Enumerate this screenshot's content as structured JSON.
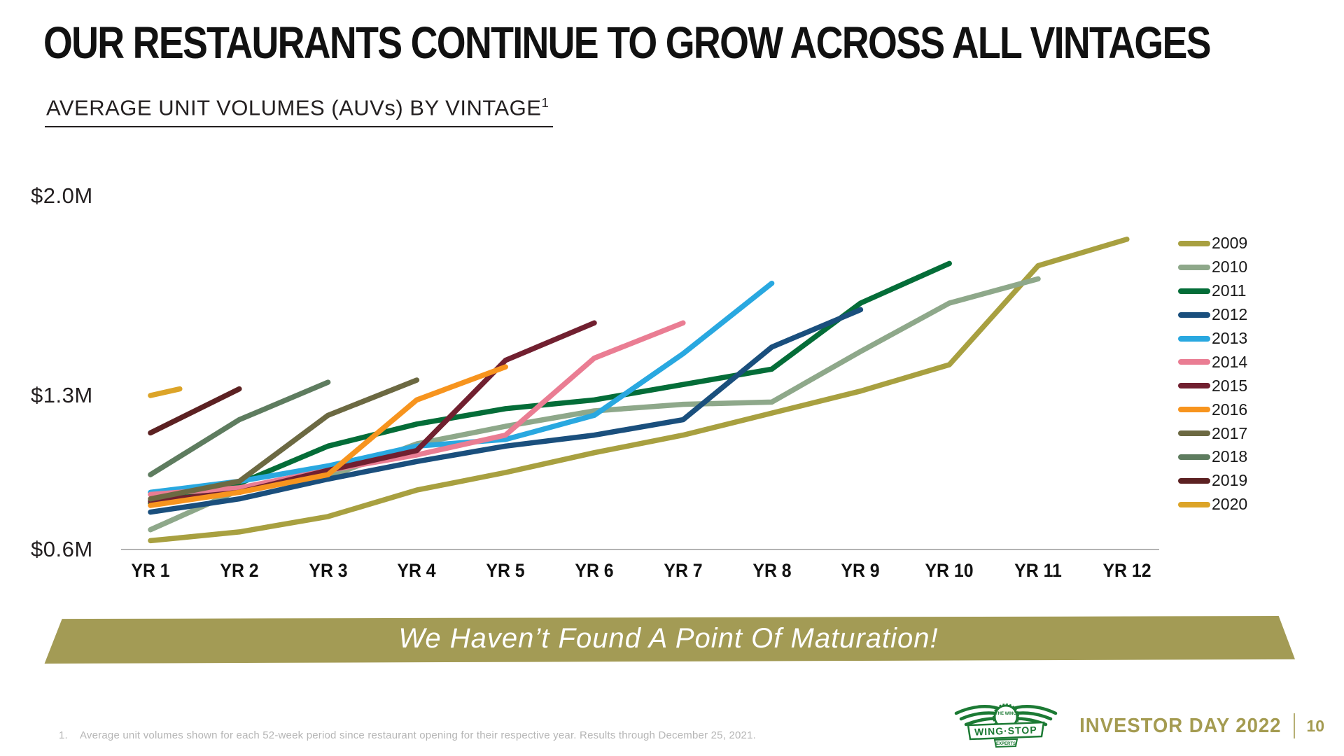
{
  "slide": {
    "title": "OUR RESTAURANTS CONTINUE TO GROW ACROSS ALL VINTAGES",
    "subtitle": {
      "text": "AVERAGE UNIT VOLUMES (AUVs) BY VINTAGE",
      "superscript": "1"
    },
    "banner": "We Haven’t Found A Point Of Maturation!",
    "footnote": {
      "number": "1.",
      "text": "Average unit volumes shown for each 52-week period since restaurant opening for their respective year. Results through December 25, 2021."
    },
    "footer": {
      "logo_brand": "WING·STOP",
      "logo_top": "THE WING",
      "logo_bottom": "EXPERTS",
      "event": "INVESTOR DAY 2022",
      "page": "10"
    }
  },
  "chart_data": {
    "type": "line",
    "title": "AVERAGE UNIT VOLUMES (AUVs) BY VINTAGE",
    "unit": "millions of dollars (AUV)",
    "categories": [
      "YR 1",
      "YR 2",
      "YR 3",
      "YR 4",
      "YR 5",
      "YR 6",
      "YR 7",
      "YR 8",
      "YR 9",
      "YR 10",
      "YR 11",
      "YR 12"
    ],
    "y_ticks": [
      {
        "label": "$2.0M",
        "value": 2.0
      },
      {
        "label": "$1.3M",
        "value": 1.3
      },
      {
        "label": "$0.6M",
        "value": 0.6
      }
    ],
    "ylim": [
      0.6,
      2.05
    ],
    "grid": false,
    "legend_position": "right",
    "series": [
      {
        "name": "2009",
        "color": "#a8a040",
        "values": [
          0.64,
          0.68,
          0.75,
          0.87,
          0.95,
          1.04,
          1.12,
          1.22,
          1.32,
          1.44,
          1.89,
          2.01
        ]
      },
      {
        "name": "2010",
        "color": "#8ea88a",
        "values": [
          0.69,
          0.87,
          0.93,
          1.08,
          1.16,
          1.23,
          1.26,
          1.27,
          1.5,
          1.72,
          1.83
        ]
      },
      {
        "name": "2011",
        "color": "#046d38",
        "values": [
          0.81,
          0.9,
          1.07,
          1.17,
          1.24,
          1.28,
          1.35,
          1.42,
          1.72,
          1.9
        ]
      },
      {
        "name": "2012",
        "color": "#1a4f7d",
        "values": [
          0.77,
          0.83,
          0.92,
          1.0,
          1.07,
          1.12,
          1.19,
          1.52,
          1.69
        ]
      },
      {
        "name": "2013",
        "color": "#29a8e0",
        "values": [
          0.86,
          0.91,
          0.98,
          1.07,
          1.1,
          1.21,
          1.49,
          1.81
        ]
      },
      {
        "name": "2014",
        "color": "#ea7d93",
        "values": [
          0.85,
          0.88,
          0.96,
          1.03,
          1.12,
          1.47,
          1.63
        ]
      },
      {
        "name": "2015",
        "color": "#712030",
        "values": [
          0.82,
          0.86,
          0.96,
          1.05,
          1.46,
          1.63
        ]
      },
      {
        "name": "2016",
        "color": "#f7941e",
        "values": [
          0.8,
          0.86,
          0.94,
          1.28,
          1.43
        ]
      },
      {
        "name": "2017",
        "color": "#6c6942",
        "values": [
          0.83,
          0.91,
          1.21,
          1.37
        ]
      },
      {
        "name": "2018",
        "color": "#5e7c5f",
        "values": [
          0.94,
          1.19,
          1.36
        ]
      },
      {
        "name": "2019",
        "color": "#5c2122",
        "values": [
          1.13,
          1.33
        ]
      },
      {
        "name": "2020",
        "color": "#dca428",
        "x": [
          1,
          1.33
        ],
        "values": [
          1.3,
          1.33
        ]
      }
    ]
  }
}
